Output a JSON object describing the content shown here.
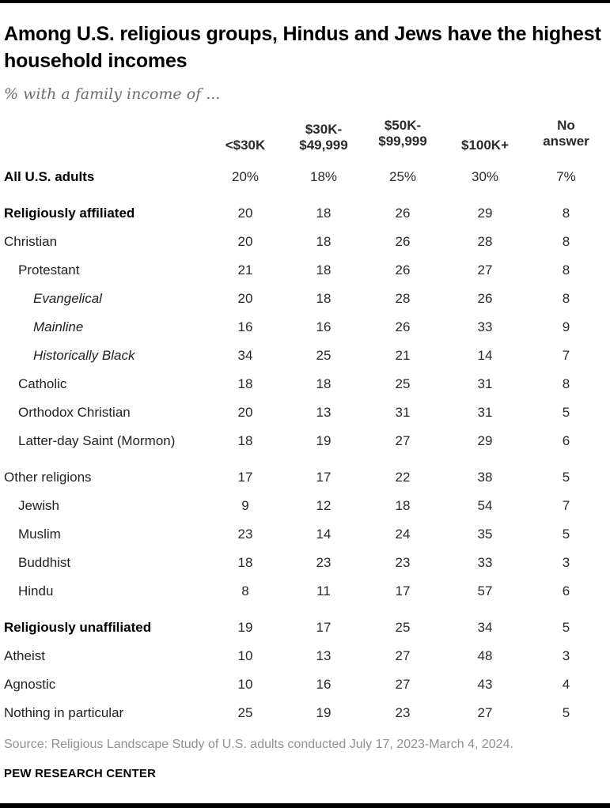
{
  "page": {
    "title": "Among U.S. religious groups, Hindus and Jews have the highest household incomes",
    "subtitle": "% with a family income of ...",
    "source": "Source: Religious Landscape Study of U.S. adults conducted July 17, 2023-March 4, 2024.",
    "brand": "PEW RESEARCH CENTER",
    "accent_bar_color": "#000000"
  },
  "chart_data": {
    "type": "table",
    "title": "Among U.S. religious groups, Hindus and Jews have the highest household incomes",
    "subtitle": "% with a family income of ...",
    "columns": [
      "<$30K",
      "$30K-\n$49,999",
      "$50K-\n$99,999",
      "$100K+",
      "No\nanswer"
    ],
    "rows": [
      {
        "label": "All U.S. adults",
        "bold": true,
        "indent": 0,
        "values": [
          "20%",
          "18%",
          "25%",
          "30%",
          "7%"
        ]
      },
      {
        "label": "Religiously affiliated",
        "bold": true,
        "indent": 0,
        "gap_before": true,
        "values": [
          "20",
          "18",
          "26",
          "29",
          "8"
        ]
      },
      {
        "label": "Christian",
        "indent": 0,
        "values": [
          "20",
          "18",
          "26",
          "28",
          "8"
        ]
      },
      {
        "label": "Protestant",
        "indent": 1,
        "values": [
          "21",
          "18",
          "26",
          "27",
          "8"
        ]
      },
      {
        "label": "Evangelical",
        "italic": true,
        "indent": 2,
        "values": [
          "20",
          "18",
          "28",
          "26",
          "8"
        ]
      },
      {
        "label": "Mainline",
        "italic": true,
        "indent": 2,
        "values": [
          "16",
          "16",
          "26",
          "33",
          "9"
        ]
      },
      {
        "label": "Historically Black",
        "italic": true,
        "indent": 2,
        "values": [
          "34",
          "25",
          "21",
          "14",
          "7"
        ]
      },
      {
        "label": "Catholic",
        "indent": 1,
        "values": [
          "18",
          "18",
          "25",
          "31",
          "8"
        ]
      },
      {
        "label": "Orthodox Christian",
        "indent": 1,
        "values": [
          "20",
          "13",
          "31",
          "31",
          "5"
        ]
      },
      {
        "label": "Latter-day Saint (Mormon)",
        "indent": 1,
        "values": [
          "18",
          "19",
          "27",
          "29",
          "6"
        ]
      },
      {
        "label": "Other religions",
        "indent": 0,
        "gap_before": true,
        "values": [
          "17",
          "17",
          "22",
          "38",
          "5"
        ]
      },
      {
        "label": "Jewish",
        "indent": 1,
        "values": [
          "9",
          "12",
          "18",
          "54",
          "7"
        ]
      },
      {
        "label": "Muslim",
        "indent": 1,
        "values": [
          "23",
          "14",
          "24",
          "35",
          "5"
        ]
      },
      {
        "label": "Buddhist",
        "indent": 1,
        "values": [
          "18",
          "23",
          "23",
          "33",
          "3"
        ]
      },
      {
        "label": "Hindu",
        "indent": 1,
        "values": [
          "8",
          "11",
          "17",
          "57",
          "6"
        ]
      },
      {
        "label": "Religiously unaffiliated",
        "bold": true,
        "indent": 0,
        "gap_before": true,
        "values": [
          "19",
          "17",
          "25",
          "34",
          "5"
        ]
      },
      {
        "label": "Atheist",
        "indent": 0,
        "values": [
          "10",
          "13",
          "27",
          "48",
          "3"
        ]
      },
      {
        "label": "Agnostic",
        "indent": 0,
        "values": [
          "10",
          "16",
          "27",
          "43",
          "4"
        ]
      },
      {
        "label": "Nothing in particular",
        "indent": 0,
        "values": [
          "25",
          "19",
          "23",
          "27",
          "5"
        ]
      }
    ]
  }
}
